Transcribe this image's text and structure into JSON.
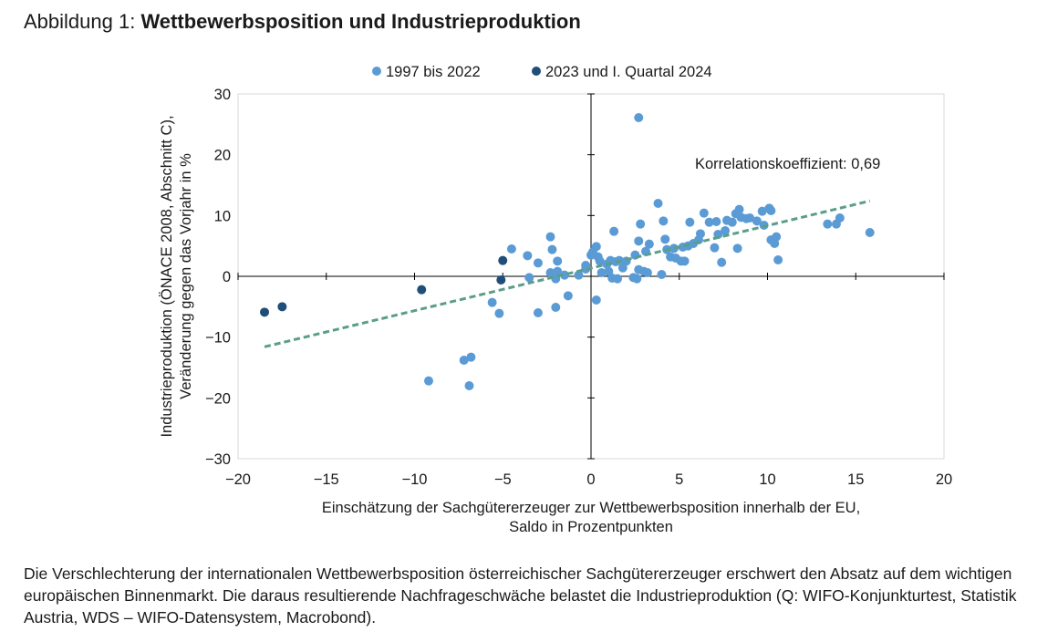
{
  "figure": {
    "prefix": "Abbildung 1: ",
    "title": "Wettbewerbsposition und Industrieproduktion",
    "caption": "Die Verschlechterung der internationalen Wettbewerbsposition österreichischer Sachgütererzeuger erschwert den Absatz auf dem wichtigen europäischen Binnenmarkt. Die daraus resultierende Nachfrageschwäche belastet die Industrieproduktion (Q: WIFO-Konjunkturtest, Statistik Austria, WDS – WIFO-Datensystem, Macrobond)."
  },
  "chart_data": {
    "type": "scatter",
    "xlabel": [
      "Einschätzung der Sachgütererzeuger zur Wettbewerbsposition innerhalb der EU,",
      "Saldo in Prozentpunkten"
    ],
    "ylabel": [
      "Industrieproduktion (ÖNACE 2008, Abschnitt C),",
      "Veränderung gegen das Vorjahr in %"
    ],
    "xlim": [
      -20,
      20
    ],
    "ylim": [
      -30,
      30
    ],
    "xticks": [
      -20,
      -15,
      -10,
      -5,
      0,
      5,
      10,
      15,
      20
    ],
    "yticks": [
      -30,
      -20,
      -10,
      0,
      10,
      20,
      30
    ],
    "grid": false,
    "legend_position": "top",
    "annotation": "Korrelationskoeffizient: 0,69",
    "trendline": {
      "x": [
        -18.5,
        15.8
      ],
      "y": [
        -11.6,
        12.4
      ],
      "color": "#5a9e8a"
    },
    "series": [
      {
        "name": "1997 bis 2022",
        "color": "#5b9bd5",
        "points": [
          [
            2.7,
            26.1
          ],
          [
            3.8,
            12.0
          ],
          [
            -9.2,
            -17.2
          ],
          [
            -6.9,
            -18.0
          ],
          [
            -7.2,
            -13.8
          ],
          [
            -6.8,
            -13.3
          ],
          [
            -5.6,
            -4.3
          ],
          [
            -5.2,
            -6.1
          ],
          [
            -3.0,
            -6.0
          ],
          [
            -2.0,
            -5.1
          ],
          [
            -1.3,
            -3.2
          ],
          [
            0.3,
            -3.9
          ],
          [
            -4.5,
            4.5
          ],
          [
            -3.6,
            3.4
          ],
          [
            -3.0,
            2.2
          ],
          [
            -2.3,
            6.5
          ],
          [
            -2.2,
            4.4
          ],
          [
            -1.9,
            2.5
          ],
          [
            -2.3,
            0.6
          ],
          [
            -1.9,
            0.8
          ],
          [
            -2.0,
            -0.4
          ],
          [
            -3.5,
            -0.2
          ],
          [
            -1.5,
            0.2
          ],
          [
            -0.7,
            0.2
          ],
          [
            -0.3,
            1.8
          ],
          [
            -0.3,
            1.2
          ],
          [
            0.0,
            3.5
          ],
          [
            0.1,
            4.0
          ],
          [
            0.3,
            4.9
          ],
          [
            0.4,
            3.2
          ],
          [
            0.5,
            2.5
          ],
          [
            0.6,
            0.6
          ],
          [
            0.9,
            2.0
          ],
          [
            1.0,
            0.8
          ],
          [
            1.1,
            2.6
          ],
          [
            1.3,
            7.4
          ],
          [
            1.2,
            -0.3
          ],
          [
            1.5,
            -0.4
          ],
          [
            1.4,
            2.4
          ],
          [
            1.6,
            2.6
          ],
          [
            1.8,
            1.4
          ],
          [
            2.0,
            2.5
          ],
          [
            2.4,
            -0.2
          ],
          [
            2.5,
            3.5
          ],
          [
            2.7,
            5.8
          ],
          [
            2.8,
            8.6
          ],
          [
            2.7,
            1.1
          ],
          [
            3.0,
            0.8
          ],
          [
            3.2,
            0.6
          ],
          [
            3.1,
            4.1
          ],
          [
            3.3,
            5.3
          ],
          [
            2.6,
            -0.4
          ],
          [
            4.0,
            0.3
          ],
          [
            4.1,
            9.1
          ],
          [
            4.2,
            6.1
          ],
          [
            4.3,
            4.4
          ],
          [
            4.5,
            3.2
          ],
          [
            4.7,
            4.6
          ],
          [
            4.8,
            3.0
          ],
          [
            5.1,
            2.5
          ],
          [
            5.2,
            4.8
          ],
          [
            5.3,
            2.5
          ],
          [
            5.5,
            5.0
          ],
          [
            5.6,
            8.9
          ],
          [
            5.8,
            5.4
          ],
          [
            6.1,
            6.0
          ],
          [
            6.2,
            7.0
          ],
          [
            6.4,
            10.4
          ],
          [
            6.7,
            8.9
          ],
          [
            7.0,
            4.7
          ],
          [
            7.1,
            9.0
          ],
          [
            7.2,
            6.9
          ],
          [
            7.4,
            2.3
          ],
          [
            7.6,
            7.5
          ],
          [
            7.7,
            9.2
          ],
          [
            8.0,
            8.9
          ],
          [
            8.2,
            10.3
          ],
          [
            8.4,
            11.0
          ],
          [
            8.3,
            4.6
          ],
          [
            8.5,
            9.7
          ],
          [
            8.8,
            9.5
          ],
          [
            9.0,
            9.6
          ],
          [
            9.4,
            9.1
          ],
          [
            9.7,
            10.7
          ],
          [
            9.8,
            8.4
          ],
          [
            10.1,
            11.2
          ],
          [
            10.2,
            10.8
          ],
          [
            10.2,
            6.0
          ],
          [
            10.4,
            5.4
          ],
          [
            10.5,
            6.5
          ],
          [
            10.6,
            2.7
          ],
          [
            13.4,
            8.6
          ],
          [
            13.9,
            8.6
          ],
          [
            14.1,
            9.6
          ],
          [
            15.8,
            7.2
          ]
        ]
      },
      {
        "name": "2023 und I. Quartal 2024",
        "color": "#1f4e79",
        "points": [
          [
            -18.5,
            -5.9
          ],
          [
            -17.5,
            -5.0
          ],
          [
            -9.6,
            -2.2
          ],
          [
            -5.1,
            -0.6
          ],
          [
            -5.0,
            2.6
          ]
        ]
      }
    ]
  }
}
